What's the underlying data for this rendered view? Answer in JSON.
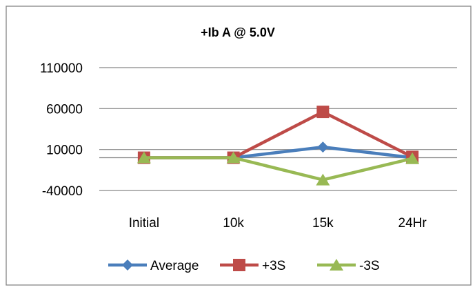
{
  "chart_data": {
    "type": "line",
    "title": "+Ib A @ 5.0V",
    "xlabel": "",
    "ylabel": "",
    "categories": [
      "Initial",
      "10k",
      "15k",
      "24Hr"
    ],
    "ylim": [
      -40000,
      110000
    ],
    "yticks": [
      110000,
      60000,
      10000,
      -40000
    ],
    "ytick_labels": [
      "110000",
      "60000",
      "10000",
      "-40000"
    ],
    "grid": true,
    "legend_position": "bottom",
    "series": [
      {
        "name": "Average",
        "values": [
          0,
          0,
          13000,
          0
        ],
        "color": "#4a7ebb",
        "marker": "diamond"
      },
      {
        "name": "+3S",
        "values": [
          0,
          0,
          56000,
          1000
        ],
        "color": "#be4b48",
        "marker": "square"
      },
      {
        "name": "-3S",
        "values": [
          0,
          0,
          -27000,
          -1000
        ],
        "color": "#98b954",
        "marker": "triangle"
      }
    ]
  }
}
